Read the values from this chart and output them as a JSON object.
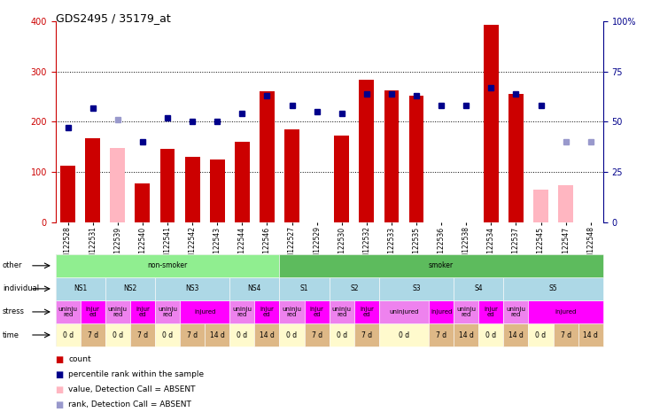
{
  "title": "GDS2495 / 35179_at",
  "samples": [
    "GSM122528",
    "GSM122531",
    "GSM122539",
    "GSM122540",
    "GSM122541",
    "GSM122542",
    "GSM122543",
    "GSM122544",
    "GSM122546",
    "GSM122527",
    "GSM122529",
    "GSM122530",
    "GSM122532",
    "GSM122533",
    "GSM122535",
    "GSM122536",
    "GSM122538",
    "GSM122534",
    "GSM122537",
    "GSM122545",
    "GSM122547",
    "GSM122548"
  ],
  "count_values": [
    113,
    168,
    null,
    78,
    146,
    130,
    125,
    160,
    260,
    185,
    null,
    172,
    284,
    263,
    252,
    null,
    null,
    392,
    255,
    null,
    null,
    null
  ],
  "count_absent": [
    null,
    null,
    148,
    null,
    null,
    null,
    null,
    null,
    null,
    null,
    null,
    null,
    null,
    null,
    null,
    null,
    null,
    null,
    null,
    65,
    75,
    null
  ],
  "rank_values": [
    47,
    57,
    null,
    40,
    52,
    50,
    50,
    54,
    63,
    58,
    55,
    54,
    64,
    64,
    63,
    58,
    58,
    67,
    64,
    58,
    null,
    null
  ],
  "rank_absent": [
    null,
    null,
    51,
    null,
    null,
    null,
    null,
    null,
    null,
    null,
    null,
    null,
    null,
    null,
    null,
    null,
    null,
    null,
    null,
    null,
    40,
    40
  ],
  "ylim_left": [
    0,
    400
  ],
  "ylim_right": [
    0,
    100
  ],
  "yticks_left": [
    0,
    100,
    200,
    300,
    400
  ],
  "yticks_right": [
    0,
    25,
    50,
    75,
    100
  ],
  "other_groups": [
    {
      "label": "non-smoker",
      "start": 0,
      "end": 9,
      "color": "#90EE90"
    },
    {
      "label": "smoker",
      "start": 9,
      "end": 22,
      "color": "#5DBB5D"
    }
  ],
  "individual_groups": [
    {
      "label": "NS1",
      "start": 0,
      "end": 2,
      "color": "#ADD8E6"
    },
    {
      "label": "NS2",
      "start": 2,
      "end": 4,
      "color": "#ADD8E6"
    },
    {
      "label": "NS3",
      "start": 4,
      "end": 7,
      "color": "#ADD8E6"
    },
    {
      "label": "NS4",
      "start": 7,
      "end": 9,
      "color": "#ADD8E6"
    },
    {
      "label": "S1",
      "start": 9,
      "end": 11,
      "color": "#ADD8E6"
    },
    {
      "label": "S2",
      "start": 11,
      "end": 13,
      "color": "#ADD8E6"
    },
    {
      "label": "S3",
      "start": 13,
      "end": 16,
      "color": "#ADD8E6"
    },
    {
      "label": "S4",
      "start": 16,
      "end": 18,
      "color": "#ADD8E6"
    },
    {
      "label": "S5",
      "start": 18,
      "end": 22,
      "color": "#ADD8E6"
    }
  ],
  "stress_groups": [
    {
      "label": "uninju\nred",
      "start": 0,
      "end": 1,
      "color": "#EE82EE"
    },
    {
      "label": "injur\ned",
      "start": 1,
      "end": 2,
      "color": "#FF00FF"
    },
    {
      "label": "uninju\nred",
      "start": 2,
      "end": 3,
      "color": "#EE82EE"
    },
    {
      "label": "injur\ned",
      "start": 3,
      "end": 4,
      "color": "#FF00FF"
    },
    {
      "label": "uninju\nred",
      "start": 4,
      "end": 5,
      "color": "#EE82EE"
    },
    {
      "label": "injured",
      "start": 5,
      "end": 7,
      "color": "#FF00FF"
    },
    {
      "label": "uninju\nred",
      "start": 7,
      "end": 8,
      "color": "#EE82EE"
    },
    {
      "label": "injur\ned",
      "start": 8,
      "end": 9,
      "color": "#FF00FF"
    },
    {
      "label": "uninju\nred",
      "start": 9,
      "end": 10,
      "color": "#EE82EE"
    },
    {
      "label": "injur\ned",
      "start": 10,
      "end": 11,
      "color": "#FF00FF"
    },
    {
      "label": "uninju\nred",
      "start": 11,
      "end": 12,
      "color": "#EE82EE"
    },
    {
      "label": "injur\ned",
      "start": 12,
      "end": 13,
      "color": "#FF00FF"
    },
    {
      "label": "uninjured",
      "start": 13,
      "end": 15,
      "color": "#EE82EE"
    },
    {
      "label": "injured",
      "start": 15,
      "end": 16,
      "color": "#FF00FF"
    },
    {
      "label": "uninju\nred",
      "start": 16,
      "end": 17,
      "color": "#EE82EE"
    },
    {
      "label": "injur\ned",
      "start": 17,
      "end": 18,
      "color": "#FF00FF"
    },
    {
      "label": "uninju\nred",
      "start": 18,
      "end": 19,
      "color": "#EE82EE"
    },
    {
      "label": "injured",
      "start": 19,
      "end": 22,
      "color": "#FF00FF"
    }
  ],
  "time_groups": [
    {
      "label": "0 d",
      "start": 0,
      "end": 1,
      "color": "#FFFACD"
    },
    {
      "label": "7 d",
      "start": 1,
      "end": 2,
      "color": "#DEB887"
    },
    {
      "label": "0 d",
      "start": 2,
      "end": 3,
      "color": "#FFFACD"
    },
    {
      "label": "7 d",
      "start": 3,
      "end": 4,
      "color": "#DEB887"
    },
    {
      "label": "0 d",
      "start": 4,
      "end": 5,
      "color": "#FFFACD"
    },
    {
      "label": "7 d",
      "start": 5,
      "end": 6,
      "color": "#DEB887"
    },
    {
      "label": "14 d",
      "start": 6,
      "end": 7,
      "color": "#DEB887"
    },
    {
      "label": "0 d",
      "start": 7,
      "end": 8,
      "color": "#FFFACD"
    },
    {
      "label": "14 d",
      "start": 8,
      "end": 9,
      "color": "#DEB887"
    },
    {
      "label": "0 d",
      "start": 9,
      "end": 10,
      "color": "#FFFACD"
    },
    {
      "label": "7 d",
      "start": 10,
      "end": 11,
      "color": "#DEB887"
    },
    {
      "label": "0 d",
      "start": 11,
      "end": 12,
      "color": "#FFFACD"
    },
    {
      "label": "7 d",
      "start": 12,
      "end": 13,
      "color": "#DEB887"
    },
    {
      "label": "0 d",
      "start": 13,
      "end": 15,
      "color": "#FFFACD"
    },
    {
      "label": "7 d",
      "start": 15,
      "end": 16,
      "color": "#DEB887"
    },
    {
      "label": "14 d",
      "start": 16,
      "end": 17,
      "color": "#DEB887"
    },
    {
      "label": "0 d",
      "start": 17,
      "end": 18,
      "color": "#FFFACD"
    },
    {
      "label": "14 d",
      "start": 18,
      "end": 19,
      "color": "#DEB887"
    },
    {
      "label": "0 d",
      "start": 19,
      "end": 20,
      "color": "#FFFACD"
    },
    {
      "label": "7 d",
      "start": 20,
      "end": 21,
      "color": "#DEB887"
    },
    {
      "label": "14 d",
      "start": 21,
      "end": 22,
      "color": "#DEB887"
    }
  ],
  "bar_width": 0.6,
  "count_color": "#CC0000",
  "count_absent_color": "#FFB6C1",
  "rank_color": "#00008B",
  "rank_absent_color": "#9999CC",
  "grid_color": "#000000",
  "bg_color": "#FFFFFF"
}
